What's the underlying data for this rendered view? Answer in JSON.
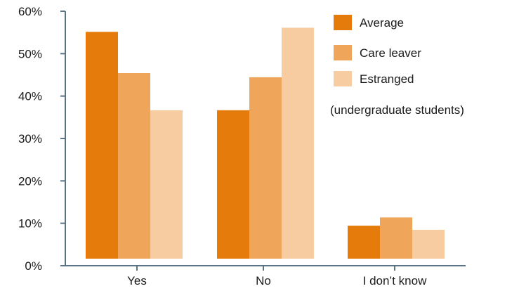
{
  "chart_data": {
    "type": "bar",
    "categories": [
      "Yes",
      "No",
      "I don’t know"
    ],
    "series": [
      {
        "name": "Average",
        "values": [
          55,
          36,
          8
        ],
        "color": "#e57b0a"
      },
      {
        "name": "Care leaver",
        "values": [
          45,
          44,
          10
        ],
        "color": "#efa55a"
      },
      {
        "name": "Estranged",
        "values": [
          36,
          56,
          7
        ],
        "color": "#f7cca0"
      }
    ],
    "ylim": [
      0,
      60
    ],
    "yticks": [
      "0%",
      "10%",
      "20%",
      "30%",
      "40%",
      "50%",
      "60%"
    ],
    "ytick_values": [
      0,
      10,
      20,
      30,
      40,
      50,
      60
    ],
    "legend_placement": "top-right",
    "legend_note": "(undergraduate students)",
    "axis_color": "#5a7487",
    "grid": false
  }
}
